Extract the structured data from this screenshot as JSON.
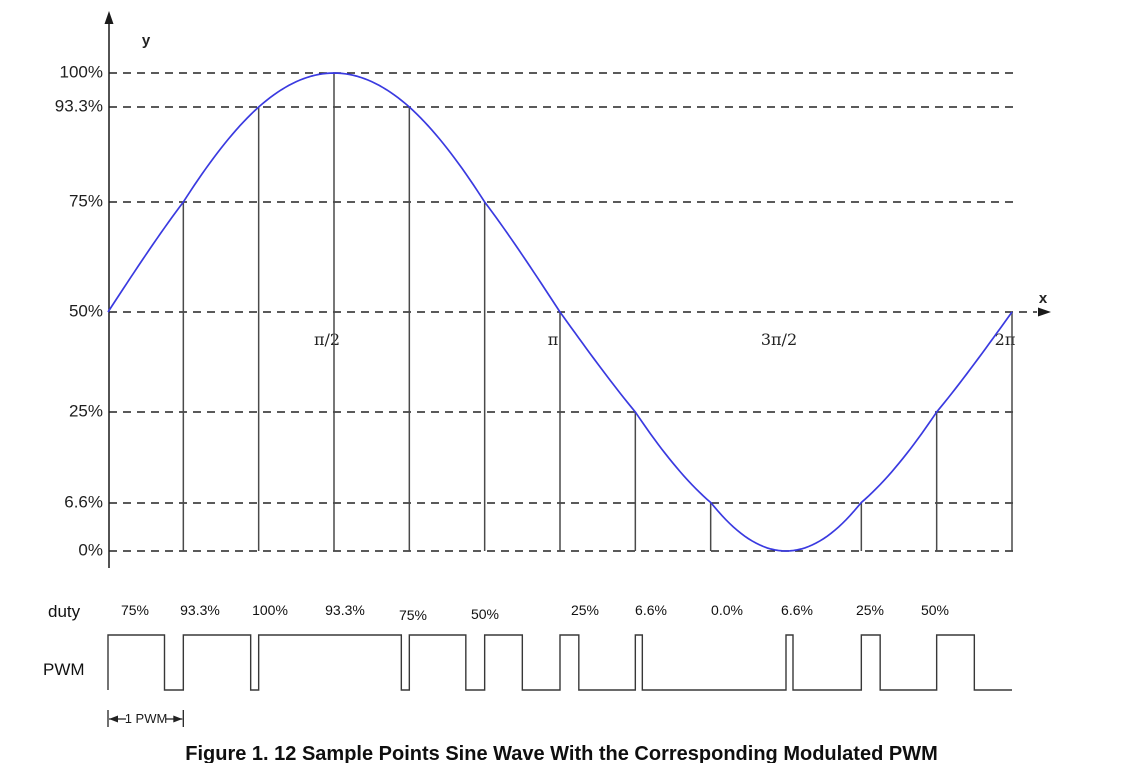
{
  "figure": {
    "caption": "Figure 1. 12 Sample Points Sine Wave With the Corresponding Modulated PWM"
  },
  "chart_data": {
    "type": "line",
    "title": "Figure 1. 12 Sample Points Sine Wave With the Corresponding Modulated PWM",
    "description": "Sine wave (one period, 0 to 2π) sampled at 12 points with vertical sample stems; dashed horizontal gridlines at duty levels; modulated PWM square wave below.",
    "colors": {
      "sine": "#3a3ae0",
      "grid": "#242424",
      "stem": "#4a4a4a",
      "pwm": "#383838"
    },
    "y_axis": {
      "label": "y",
      "ticks": [
        {
          "label": "100%",
          "value": 100
        },
        {
          "label": "93.3%",
          "value": 93.3
        },
        {
          "label": "75%",
          "value": 75
        },
        {
          "label": "50%",
          "value": 50
        },
        {
          "label": "25%",
          "value": 25
        },
        {
          "label": "6.6%",
          "value": 6.6
        },
        {
          "label": "0%",
          "value": 0
        }
      ]
    },
    "x_axis": {
      "label": "x",
      "ticks": [
        {
          "label": "π/2",
          "deg": 90
        },
        {
          "label": "π",
          "deg": 180
        },
        {
          "label": "3π/2",
          "deg": 270
        },
        {
          "label": "2π",
          "deg": 360
        }
      ]
    },
    "samples": {
      "count": 12,
      "phase_step_deg": 30,
      "duty_percent": [
        75,
        93.3,
        100,
        93.3,
        75,
        50,
        25,
        6.6,
        0,
        6.6,
        25,
        50
      ]
    },
    "duty_row": {
      "label": "duty",
      "values": [
        "75%",
        "93.3%",
        "100%",
        "93.3%",
        "75%",
        "50%",
        "25%",
        "6.6%",
        "0.0%",
        "6.6%",
        "25%",
        "50%"
      ]
    },
    "pwm_row": {
      "label": "PWM",
      "period_marker": "1 PWM",
      "duty_percent": [
        75,
        93.3,
        100,
        93.3,
        75,
        50,
        25,
        6.6,
        0,
        6.6,
        25,
        50
      ]
    }
  }
}
